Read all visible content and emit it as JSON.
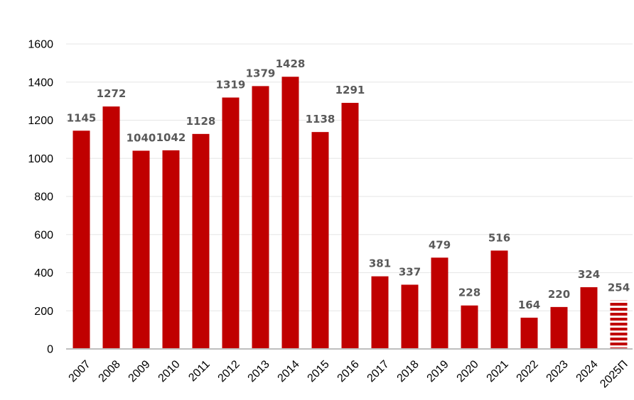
{
  "chart_data": {
    "type": "bar",
    "title": "",
    "xlabel": "",
    "ylabel": "",
    "categories": [
      "2007",
      "2008",
      "2009",
      "2010",
      "2011",
      "2012",
      "2013",
      "2014",
      "2015",
      "2016",
      "2017",
      "2018",
      "2019",
      "2020",
      "2021",
      "2022",
      "2023",
      "2024",
      "2025П"
    ],
    "values": [
      1145,
      1272,
      1040,
      1042,
      1128,
      1319,
      1379,
      1428,
      1138,
      1291,
      381,
      337,
      479,
      228,
      516,
      164,
      220,
      324,
      254
    ],
    "data_labels": [
      "1145",
      "1272",
      "1040",
      "1042",
      "1128",
      "1319",
      "1379",
      "1428",
      "1138",
      "1291",
      "381",
      "337",
      "479",
      "228",
      "516",
      "164",
      "220",
      "324",
      "254"
    ],
    "forecast_index": 18,
    "ylim": [
      0,
      1600
    ],
    "yticks": [
      0,
      200,
      400,
      600,
      800,
      1000,
      1200,
      1400,
      1600
    ],
    "ytick_labels": [
      "0",
      "200",
      "400",
      "600",
      "800",
      "1000",
      "1200",
      "1400",
      "1600"
    ],
    "grid": true,
    "legend": "none",
    "colors": {
      "bar": "#C00000",
      "forecast_stripe": "#C00000",
      "grid": "#E6E6E6",
      "axis": "#BFBFBF",
      "data_label": "#595959",
      "tick_label": "#000000"
    }
  }
}
